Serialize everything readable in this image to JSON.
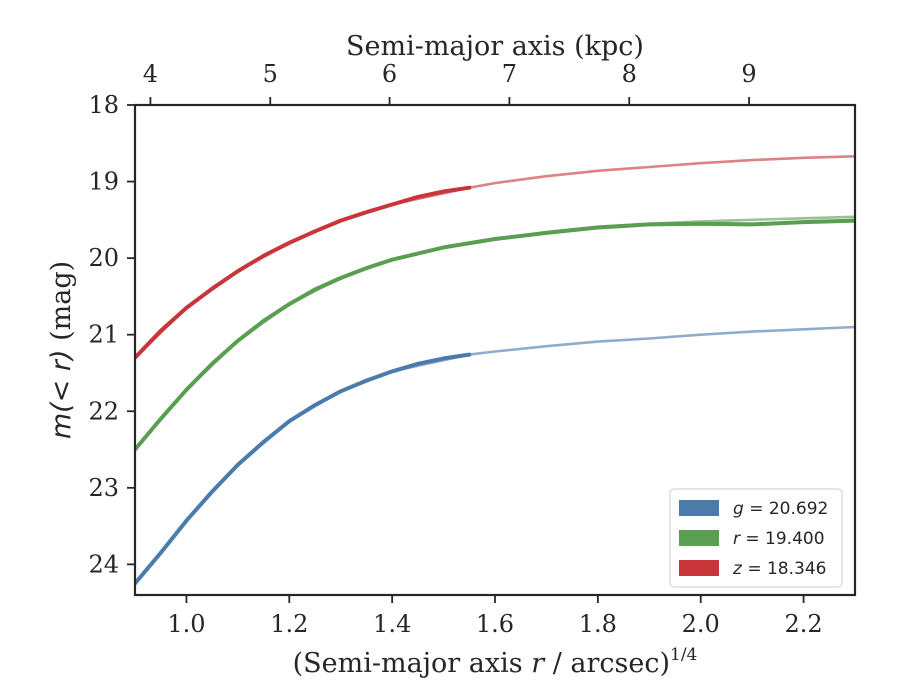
{
  "chart_data": {
    "type": "line",
    "title": "",
    "xlabel": "(Semi-major axis r / arcsec)^1/4",
    "xlabel_parts": {
      "prefix": "(Semi-major axis ",
      "var": "r",
      "mid": " / arcsec)",
      "sup": "1/4"
    },
    "ylabel": "m(< r) (mag)",
    "ylabel_parts": {
      "math": "m(< r)",
      "unit": " (mag)"
    },
    "top_xlabel": "Semi-major axis (kpc)",
    "xlim": [
      0.9,
      2.3
    ],
    "ylim": [
      24.4,
      18.0
    ],
    "y_inverted": true,
    "xticks": [
      1.0,
      1.2,
      1.4,
      1.6,
      1.8,
      2.0,
      2.2
    ],
    "xtick_labels": [
      "1.0",
      "1.2",
      "1.4",
      "1.6",
      "1.8",
      "2.0",
      "2.2"
    ],
    "yticks": [
      18,
      19,
      20,
      21,
      22,
      23,
      24
    ],
    "ytick_labels": [
      "18",
      "19",
      "20",
      "21",
      "22",
      "23",
      "24"
    ],
    "top_ticks": [
      {
        "label": "4",
        "x": 0.93
      },
      {
        "label": "5",
        "x": 1.163
      },
      {
        "label": "6",
        "x": 1.395
      },
      {
        "label": "7",
        "x": 1.628
      },
      {
        "label": "8",
        "x": 1.861
      },
      {
        "label": "9",
        "x": 2.094
      }
    ],
    "grid": false,
    "legend_position": "lower-right",
    "series": [
      {
        "name": "g = 20.692",
        "legend_var": "g",
        "legend_value": "= 20.692",
        "color": "#4a7bab",
        "measured": [
          [
            0.9,
            24.25
          ],
          [
            0.95,
            23.85
          ],
          [
            1.0,
            23.43
          ],
          [
            1.05,
            23.05
          ],
          [
            1.1,
            22.7
          ],
          [
            1.15,
            22.4
          ],
          [
            1.2,
            22.13
          ],
          [
            1.25,
            21.92
          ],
          [
            1.3,
            21.74
          ],
          [
            1.35,
            21.6
          ],
          [
            1.4,
            21.48
          ],
          [
            1.45,
            21.38
          ],
          [
            1.5,
            21.31
          ],
          [
            1.55,
            21.26
          ]
        ],
        "model": [
          [
            0.9,
            24.25
          ],
          [
            1.0,
            23.43
          ],
          [
            1.1,
            22.7
          ],
          [
            1.2,
            22.13
          ],
          [
            1.3,
            21.74
          ],
          [
            1.4,
            21.48
          ],
          [
            1.55,
            21.26
          ],
          [
            1.6,
            21.22
          ],
          [
            1.7,
            21.15
          ],
          [
            1.8,
            21.09
          ],
          [
            1.9,
            21.05
          ],
          [
            2.0,
            21.0
          ],
          [
            2.1,
            20.96
          ],
          [
            2.2,
            20.93
          ],
          [
            2.3,
            20.9
          ]
        ]
      },
      {
        "name": "r = 19.400",
        "legend_var": "r",
        "legend_value": "= 19.400",
        "color": "#5a9e52",
        "measured": [
          [
            0.9,
            22.5
          ],
          [
            0.95,
            22.1
          ],
          [
            1.0,
            21.72
          ],
          [
            1.05,
            21.38
          ],
          [
            1.1,
            21.08
          ],
          [
            1.15,
            20.82
          ],
          [
            1.2,
            20.6
          ],
          [
            1.25,
            20.41
          ],
          [
            1.3,
            20.26
          ],
          [
            1.35,
            20.13
          ],
          [
            1.4,
            20.02
          ],
          [
            1.5,
            19.86
          ],
          [
            1.6,
            19.75
          ],
          [
            1.7,
            19.67
          ],
          [
            1.8,
            19.6
          ],
          [
            1.9,
            19.56
          ],
          [
            2.0,
            19.55
          ],
          [
            2.1,
            19.56
          ],
          [
            2.2,
            19.53
          ],
          [
            2.3,
            19.51
          ]
        ],
        "model": [
          [
            0.9,
            22.5
          ],
          [
            1.0,
            21.72
          ],
          [
            1.1,
            21.08
          ],
          [
            1.2,
            20.6
          ],
          [
            1.3,
            20.26
          ],
          [
            1.4,
            20.02
          ],
          [
            1.5,
            19.86
          ],
          [
            1.6,
            19.75
          ],
          [
            1.7,
            19.66
          ],
          [
            1.8,
            19.59
          ],
          [
            1.9,
            19.55
          ],
          [
            2.0,
            19.52
          ],
          [
            2.1,
            19.5
          ],
          [
            2.2,
            19.48
          ],
          [
            2.3,
            19.46
          ]
        ]
      },
      {
        "name": "z = 18.346",
        "legend_var": "z",
        "legend_value": "= 18.346",
        "color": "#c8353a",
        "measured": [
          [
            0.9,
            21.3
          ],
          [
            0.95,
            20.95
          ],
          [
            1.0,
            20.65
          ],
          [
            1.05,
            20.4
          ],
          [
            1.1,
            20.17
          ],
          [
            1.15,
            19.97
          ],
          [
            1.2,
            19.8
          ],
          [
            1.25,
            19.65
          ],
          [
            1.3,
            19.51
          ],
          [
            1.35,
            19.4
          ],
          [
            1.4,
            19.3
          ],
          [
            1.45,
            19.2
          ],
          [
            1.5,
            19.13
          ],
          [
            1.55,
            19.08
          ]
        ],
        "model": [
          [
            0.9,
            21.3
          ],
          [
            1.0,
            20.65
          ],
          [
            1.1,
            20.17
          ],
          [
            1.2,
            19.8
          ],
          [
            1.3,
            19.51
          ],
          [
            1.4,
            19.3
          ],
          [
            1.55,
            19.08
          ],
          [
            1.6,
            19.02
          ],
          [
            1.7,
            18.93
          ],
          [
            1.8,
            18.86
          ],
          [
            1.9,
            18.81
          ],
          [
            2.0,
            18.76
          ],
          [
            2.1,
            18.72
          ],
          [
            2.2,
            18.69
          ],
          [
            2.3,
            18.67
          ]
        ]
      }
    ]
  }
}
